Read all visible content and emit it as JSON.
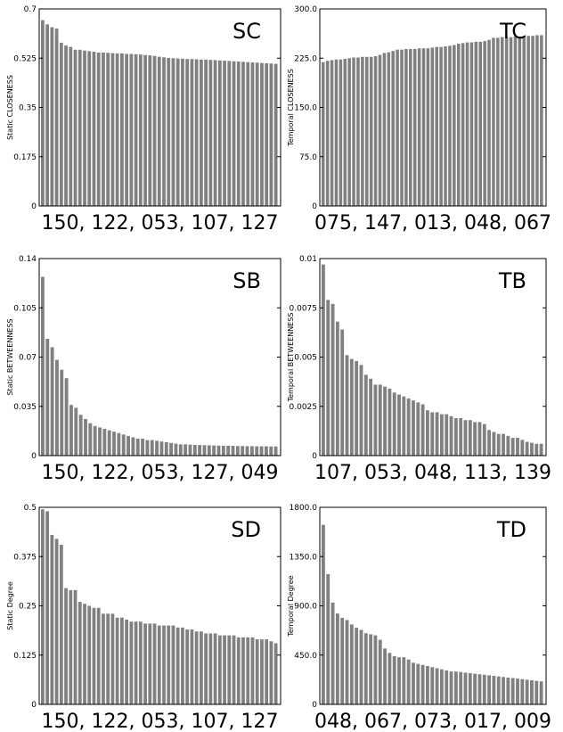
{
  "chart_data": [
    {
      "type": "bar",
      "corner_label": "SC",
      "ylabel": "Static CLOSENESS",
      "xlabel": "150, 122, 053, 107, 127",
      "ylim": [
        0,
        0.7
      ],
      "yticks": [
        "0",
        "0.175",
        "0.35",
        "0.525",
        "0.7"
      ],
      "values": [
        0.66,
        0.645,
        0.635,
        0.63,
        0.58,
        0.57,
        0.565,
        0.555,
        0.555,
        0.552,
        0.55,
        0.548,
        0.545,
        0.545,
        0.544,
        0.543,
        0.542,
        0.542,
        0.54,
        0.54,
        0.539,
        0.538,
        0.536,
        0.535,
        0.533,
        0.53,
        0.528,
        0.526,
        0.525,
        0.524,
        0.523,
        0.522,
        0.522,
        0.521,
        0.52,
        0.52,
        0.519,
        0.518,
        0.517,
        0.516,
        0.515,
        0.514,
        0.513,
        0.512,
        0.511,
        0.51,
        0.509,
        0.508,
        0.507,
        0.506,
        0.505
      ]
    },
    {
      "type": "bar",
      "corner_label": "TC",
      "ylabel": "Temporal CLOSENESS",
      "xlabel": "075, 147, 013, 048, 067",
      "ylim": [
        0,
        300
      ],
      "yticks": [
        "0",
        "75.0",
        "150.0",
        "225.0",
        "300.0"
      ],
      "values": [
        219,
        221,
        222,
        223,
        223,
        224,
        225,
        226,
        226,
        227,
        227,
        227,
        228,
        230,
        233,
        234,
        236,
        238,
        238,
        239,
        239,
        239,
        240,
        240,
        240,
        241,
        242,
        242,
        243,
        244,
        245,
        247,
        248,
        249,
        249,
        250,
        250,
        251,
        253,
        256,
        256,
        257,
        257,
        257,
        258,
        258,
        259,
        259,
        259,
        260,
        260
      ]
    },
    {
      "type": "bar",
      "corner_label": "SB",
      "ylabel": "Static BETWEENNESS",
      "xlabel": "150, 122, 053, 127, 049",
      "ylim": [
        0,
        0.14
      ],
      "yticks": [
        "0",
        "0.035",
        "0.07",
        "0.105",
        "0.14"
      ],
      "values": [
        0.127,
        0.083,
        0.077,
        0.068,
        0.061,
        0.055,
        0.036,
        0.034,
        0.029,
        0.026,
        0.023,
        0.021,
        0.02,
        0.019,
        0.018,
        0.017,
        0.016,
        0.015,
        0.014,
        0.013,
        0.012,
        0.012,
        0.011,
        0.011,
        0.0105,
        0.01,
        0.0095,
        0.009,
        0.0085,
        0.008,
        0.008,
        0.0078,
        0.0076,
        0.0075,
        0.0074,
        0.0073,
        0.0072,
        0.0071,
        0.007,
        0.007,
        0.0069,
        0.0068,
        0.0068,
        0.0067,
        0.0067,
        0.0066,
        0.0066,
        0.0066,
        0.0065,
        0.0065
      ]
    },
    {
      "type": "bar",
      "corner_label": "TB",
      "ylabel": "Temporal BETWEENNESS",
      "xlabel": "107, 053, 048, 113, 139",
      "ylim": [
        0,
        0.01
      ],
      "yticks": [
        "0",
        "0.0025",
        "0.005",
        "0.0075",
        "0.01"
      ],
      "values": [
        0.0097,
        0.0079,
        0.0077,
        0.0068,
        0.0064,
        0.0051,
        0.0049,
        0.0048,
        0.0046,
        0.0041,
        0.0039,
        0.0036,
        0.0036,
        0.0035,
        0.0034,
        0.0032,
        0.0031,
        0.003,
        0.0029,
        0.0028,
        0.0027,
        0.0026,
        0.0023,
        0.0022,
        0.0022,
        0.0021,
        0.0021,
        0.002,
        0.0019,
        0.0019,
        0.0018,
        0.0018,
        0.0017,
        0.0017,
        0.0016,
        0.0013,
        0.0012,
        0.0011,
        0.0011,
        0.001,
        0.0009,
        0.0009,
        0.0008,
        0.0007,
        0.00065,
        0.0006,
        0.0006
      ]
    },
    {
      "type": "bar",
      "corner_label": "SD",
      "ylabel": "Static Degree",
      "xlabel": "150, 122, 053, 107, 127",
      "ylim": [
        0,
        0.5
      ],
      "yticks": [
        "0",
        "0.125",
        "0.25",
        "0.375",
        "0.5"
      ],
      "values": [
        0.495,
        0.49,
        0.43,
        0.42,
        0.405,
        0.295,
        0.29,
        0.29,
        0.26,
        0.255,
        0.25,
        0.245,
        0.245,
        0.23,
        0.23,
        0.23,
        0.22,
        0.22,
        0.215,
        0.21,
        0.21,
        0.21,
        0.205,
        0.205,
        0.205,
        0.2,
        0.2,
        0.2,
        0.2,
        0.195,
        0.195,
        0.19,
        0.19,
        0.185,
        0.185,
        0.18,
        0.18,
        0.18,
        0.175,
        0.175,
        0.175,
        0.175,
        0.17,
        0.17,
        0.17,
        0.17,
        0.165,
        0.165,
        0.165,
        0.16,
        0.155
      ]
    },
    {
      "type": "bar",
      "corner_label": "TD",
      "ylabel": "Temporal Degree",
      "xlabel": "048, 067, 073, 017, 009",
      "ylim": [
        0,
        1800
      ],
      "yticks": [
        "0",
        "450.0",
        "900.0",
        "1350.0",
        "1800.0"
      ],
      "values": [
        1640,
        1190,
        930,
        830,
        790,
        770,
        730,
        700,
        680,
        650,
        640,
        630,
        590,
        510,
        470,
        440,
        430,
        430,
        410,
        380,
        370,
        360,
        350,
        340,
        330,
        320,
        310,
        300,
        300,
        295,
        290,
        285,
        280,
        275,
        270,
        265,
        260,
        255,
        250,
        245,
        240,
        235,
        230,
        225,
        220,
        215,
        210
      ]
    }
  ]
}
